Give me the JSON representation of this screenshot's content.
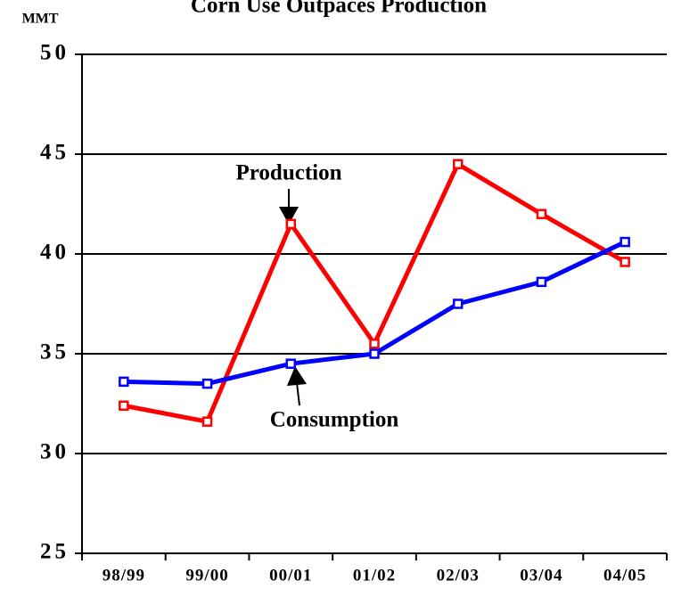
{
  "chart_data": {
    "type": "line",
    "title": "Corn Use Outpaces Production",
    "y_label": "MMT",
    "categories": [
      "98/99",
      "99/00",
      "00/01",
      "01/02",
      "02/03",
      "03/04",
      "04/05"
    ],
    "series": [
      {
        "name": "Production",
        "color": "#ff0000",
        "values": [
          32.4,
          31.6,
          41.5,
          35.5,
          44.5,
          42.0,
          39.6
        ]
      },
      {
        "name": "Consumption",
        "color": "#0000ff",
        "values": [
          33.6,
          33.5,
          34.5,
          35.0,
          37.5,
          38.6,
          40.6
        ]
      }
    ],
    "ylim": [
      25,
      50
    ],
    "yticks": [
      25,
      30,
      35,
      40,
      45,
      50
    ],
    "grid": true
  }
}
